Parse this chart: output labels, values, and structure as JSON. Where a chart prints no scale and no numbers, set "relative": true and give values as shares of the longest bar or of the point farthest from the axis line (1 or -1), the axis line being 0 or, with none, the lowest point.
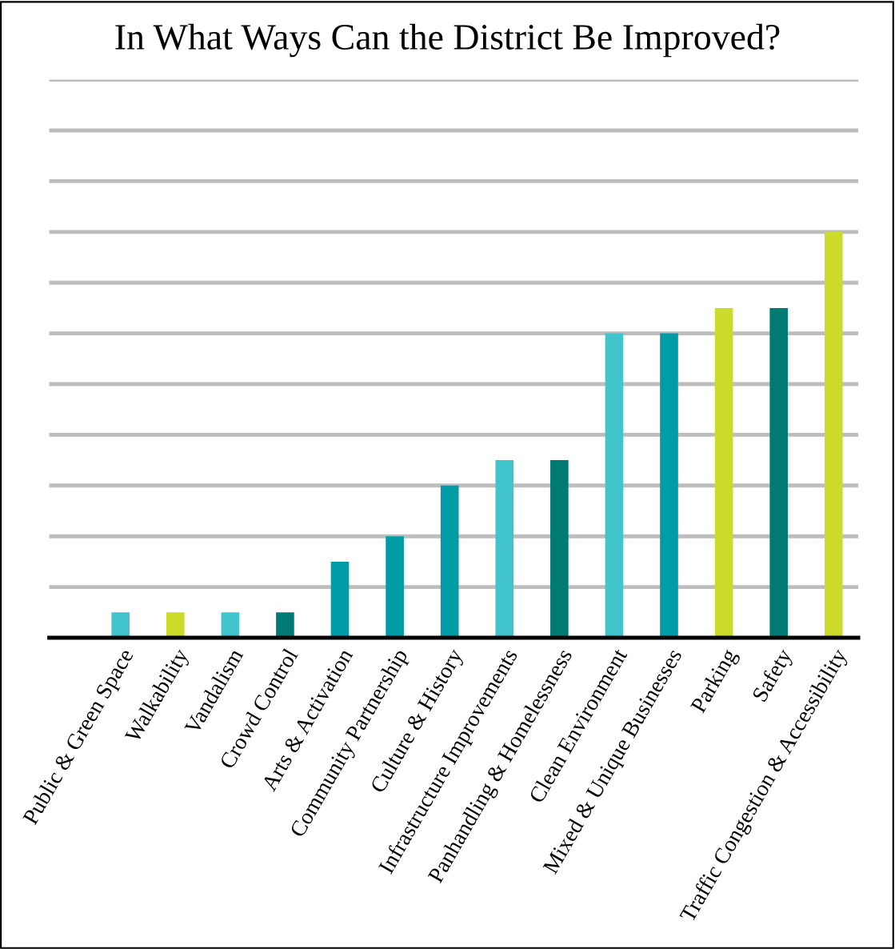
{
  "chart_data": {
    "type": "bar",
    "title": "In What Ways Can the District Be Improved?",
    "categories": [
      "Public & Green Space",
      "Walkability",
      "Vandalism",
      "Crowd Control",
      "Arts & Activation",
      "Community Partnership",
      "Culture & History",
      "Infrastructure Improvements",
      "Panhandling & Homelessness",
      "Clean Environment",
      "Mixed & Unique Businesses",
      "Parking",
      "Safety",
      "Traffic Congestion & Accessibility"
    ],
    "values": [
      0.0625,
      0.0625,
      0.0625,
      0.0625,
      0.1875,
      0.25,
      0.375,
      0.4375,
      0.4375,
      0.75,
      0.75,
      0.8125,
      0.8125,
      1
    ],
    "colors": [
      "#41c4cc",
      "#ccdb2a",
      "#41c4cc",
      "#007a73",
      "#009ca6",
      "#009ca6",
      "#009ca6",
      "#41c4cc",
      "#007a73",
      "#41c4cc",
      "#009ca6",
      "#ccdb2a",
      "#007a73",
      "#ccdb2a"
    ],
    "relative": true,
    "grid": "y"
  }
}
